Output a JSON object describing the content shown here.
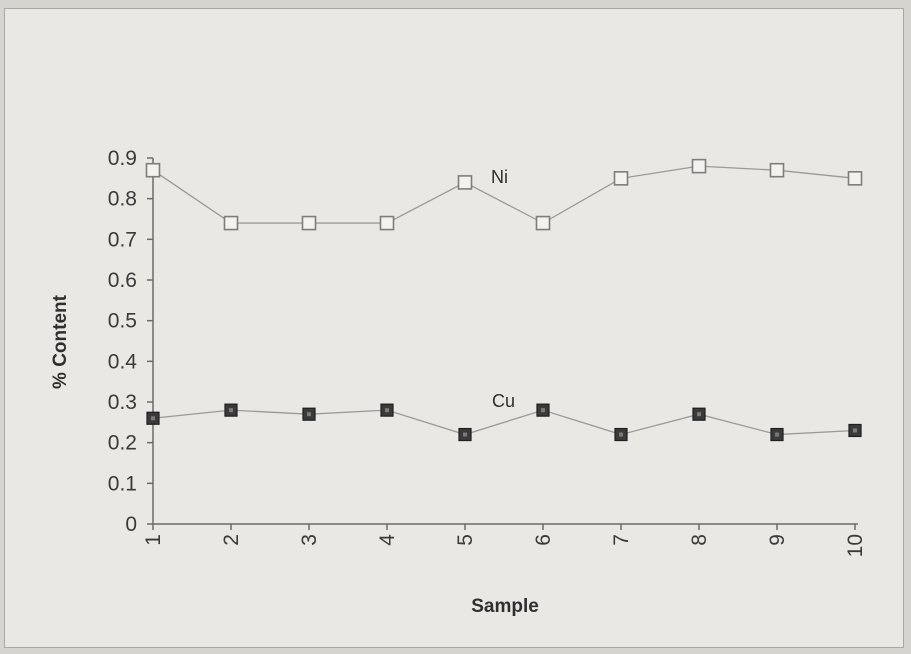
{
  "chart_data": {
    "type": "line",
    "title": "",
    "xlabel": "Sample",
    "ylabel": "% Content",
    "categories": [
      "1",
      "2",
      "3",
      "4",
      "5",
      "6",
      "7",
      "8",
      "9",
      "10"
    ],
    "ylim": [
      0,
      0.9
    ],
    "yticks": [
      "0",
      "0.1",
      "0.2",
      "0.3",
      "0.4",
      "0.5",
      "0.6",
      "0.7",
      "0.8",
      "0.9"
    ],
    "grid": false,
    "legend": "none",
    "series": [
      {
        "name": "Ni",
        "marker": "open-square",
        "color": "#8a8a8a",
        "values": [
          0.87,
          0.74,
          0.74,
          0.74,
          0.84,
          0.74,
          0.85,
          0.88,
          0.87,
          0.85
        ]
      },
      {
        "name": "Cu",
        "marker": "filled-square",
        "color": "#2e2e2e",
        "values": [
          0.26,
          0.28,
          0.27,
          0.28,
          0.22,
          0.28,
          0.22,
          0.27,
          0.22,
          0.23
        ]
      }
    ]
  }
}
